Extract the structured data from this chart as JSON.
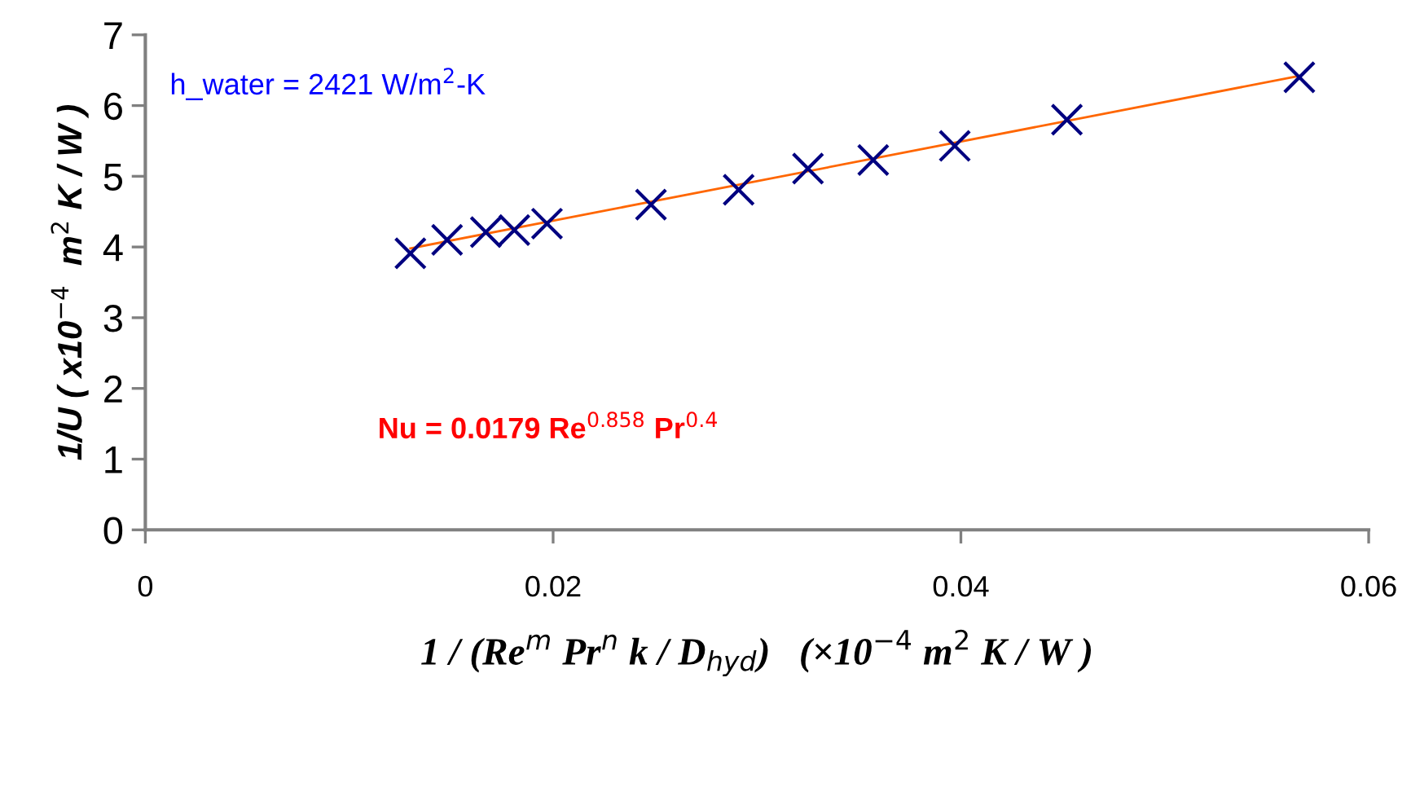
{
  "chart_data": {
    "type": "scatter",
    "xlabel": "1 / (Re$^{m}$ Pr$^{n}$ k / D$_{hyd}$)   (×10$^{−4}$ m$^{2}$ K / W )",
    "ylabel": "1/U ( x10$^{−4}$  m$^{2}$ K / W )",
    "annotations": [
      "h_water = 2421 W/m$^{2}$-K",
      "Nu = 0.0179 Re$^{0.858}$ Pr$^{0.4}$"
    ],
    "series": [
      {
        "color": "#000080",
        "marker": "cross",
        "x": [
          0.013,
          0.0148,
          0.0167,
          0.0181,
          0.0197,
          0.0248,
          0.0291,
          0.0325,
          0.0357,
          0.0397,
          0.0452,
          0.0566
        ],
        "values": [
          3.91,
          4.1,
          4.21,
          4.24,
          4.33,
          4.6,
          4.81,
          5.11,
          5.23,
          5.43,
          5.8,
          6.4
        ]
      },
      {
        "type": "line",
        "color": "#ff6600",
        "x": [
          0.013,
          0.0566
        ],
        "values": [
          3.98,
          6.42
        ]
      }
    ],
    "xlim": [
      0,
      0.06
    ],
    "ylim": [
      0,
      7
    ],
    "xticks": [
      0,
      {
        "value": 0.02,
        "label": "0.02"
      },
      {
        "value": 0.04,
        "label": "0.04"
      },
      {
        "value": 0.06,
        "label": "0.06"
      }
    ],
    "yticks": [
      0,
      1,
      2,
      3,
      4,
      5,
      6,
      7
    ],
    "grid": false,
    "legend": false
  }
}
